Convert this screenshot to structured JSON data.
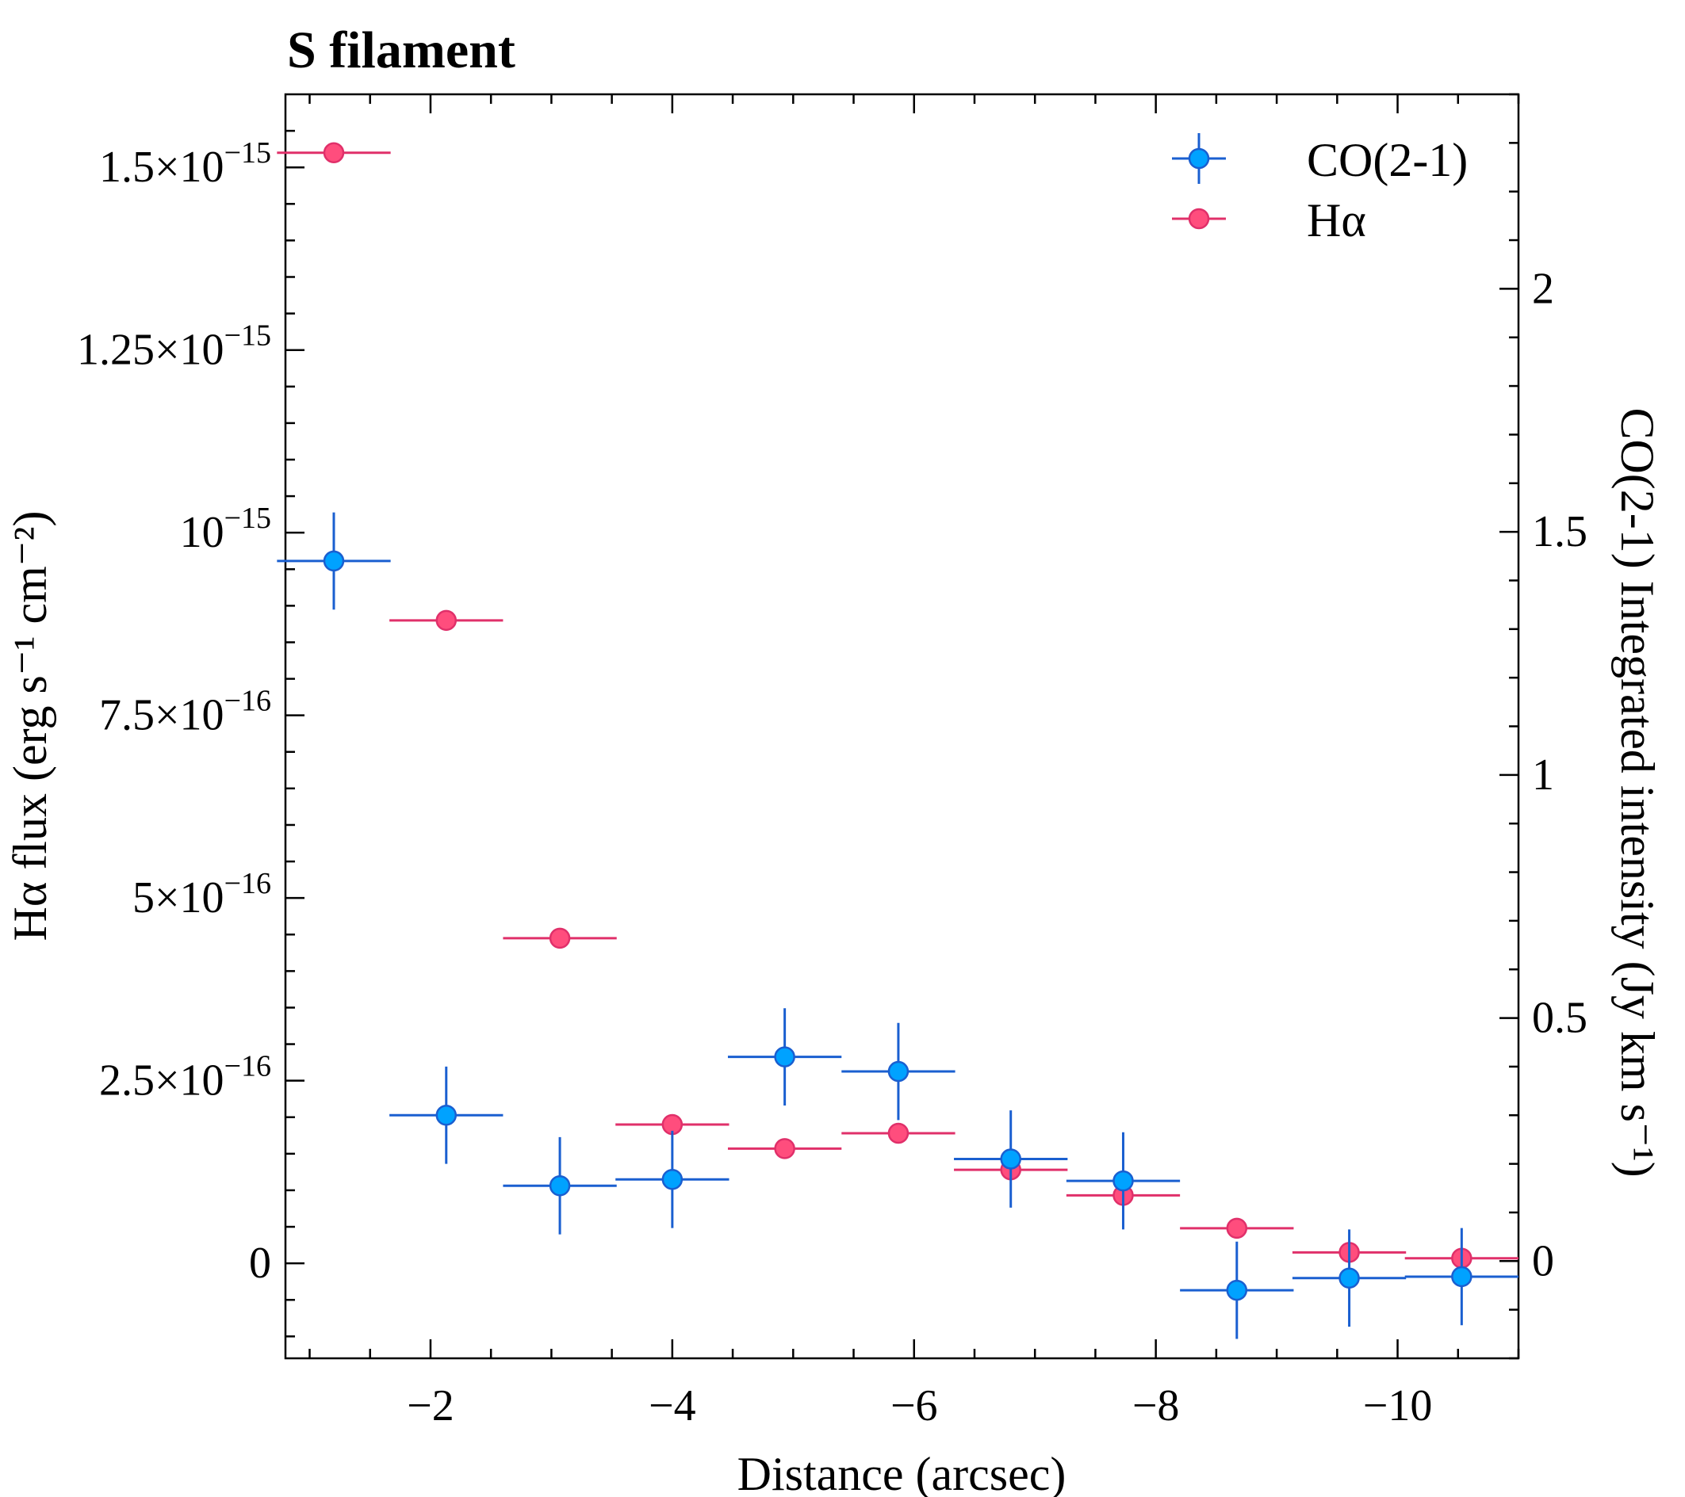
{
  "chart_data": {
    "type": "scatter",
    "title": "S filament",
    "xlabel": "Distance (arcsec)",
    "ylabel_left": "Hα flux (erg s⁻¹ cm⁻²)",
    "ylabel_right": "CO(2-1) Integrated intensity (Jy km s⁻¹)",
    "xlim": [
      -0.8,
      -11.0
    ],
    "ylim_left": [
      -1.3e-16,
      1.6e-15
    ],
    "ylim_right": [
      -0.2,
      2.4
    ],
    "grid": false,
    "legend_position": "top-right",
    "x_ticks": [
      {
        "value": -2,
        "label": "−2"
      },
      {
        "value": -4,
        "label": "−4"
      },
      {
        "value": -6,
        "label": "−6"
      },
      {
        "value": -8,
        "label": "−8"
      },
      {
        "value": -10,
        "label": "−10"
      }
    ],
    "y_left_ticks": [
      {
        "value": 0,
        "mant": "0",
        "exp": ""
      },
      {
        "value": 2.5e-16,
        "mant": "2.5×10",
        "exp": "−16"
      },
      {
        "value": 5e-16,
        "mant": "5×10",
        "exp": "−16"
      },
      {
        "value": 7.5e-16,
        "mant": "7.5×10",
        "exp": "−16"
      },
      {
        "value": 1e-15,
        "mant": "10",
        "exp": "−15"
      },
      {
        "value": 1.25e-15,
        "mant": "1.25×10",
        "exp": "−15"
      },
      {
        "value": 1.5e-15,
        "mant": "1.5×10",
        "exp": "−15"
      }
    ],
    "y_right_ticks": [
      {
        "value": 0,
        "label": "0"
      },
      {
        "value": 0.5,
        "label": "0.5"
      },
      {
        "value": 1,
        "label": "1"
      },
      {
        "value": 1.5,
        "label": "1.5"
      },
      {
        "value": 2,
        "label": "2"
      }
    ],
    "series": [
      {
        "name": "CO(2-1)",
        "axis": "right",
        "color": "#00a2ff",
        "line_color": "#1a5fd0",
        "x": [
          -1.2,
          -2.13,
          -3.07,
          -4.0,
          -4.93,
          -5.87,
          -6.8,
          -7.73,
          -8.67,
          -9.6,
          -10.53
        ],
        "xerr": [
          0.47,
          0.47,
          0.47,
          0.47,
          0.47,
          0.47,
          0.47,
          0.47,
          0.47,
          0.47,
          0.47
        ],
        "y": [
          1.44,
          0.3,
          0.155,
          0.168,
          0.42,
          0.39,
          0.21,
          0.165,
          -0.06,
          -0.035,
          -0.032
        ],
        "yerr": [
          0.1,
          0.1,
          0.1,
          0.1,
          0.1,
          0.1,
          0.1,
          0.1,
          0.1,
          0.1,
          0.1
        ]
      },
      {
        "name": "Hα",
        "axis": "left",
        "color": "#ff4d7d",
        "line_color": "#e0306a",
        "x": [
          -1.2,
          -2.13,
          -3.07,
          -4.0,
          -4.93,
          -5.87,
          -6.8,
          -7.73,
          -8.67,
          -9.6,
          -10.53
        ],
        "xerr": [
          0.47,
          0.47,
          0.47,
          0.47,
          0.47,
          0.47,
          0.47,
          0.47,
          0.47,
          0.47,
          0.47
        ],
        "y": [
          1.52e-15,
          8.8e-16,
          4.45e-16,
          1.9e-16,
          1.57e-16,
          1.78e-16,
          1.28e-16,
          9.3e-17,
          4.8e-17,
          1.5e-17,
          7e-18
        ]
      }
    ]
  }
}
